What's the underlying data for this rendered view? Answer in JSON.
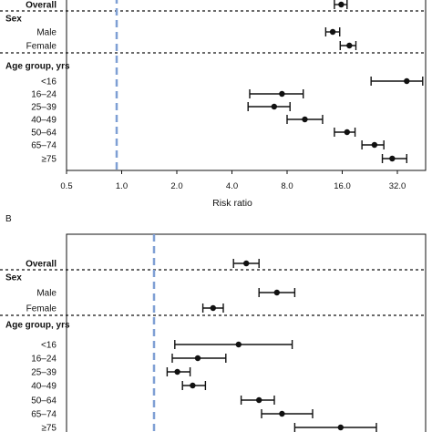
{
  "chart_data": [
    {
      "type": "forest",
      "panel_label": "",
      "xlabel": "Risk ratio",
      "x_scale": "log2",
      "xlim": [
        0.5,
        50
      ],
      "x_ticks": [
        0.5,
        1.0,
        2.0,
        4.0,
        8.0,
        16.0,
        32.0
      ],
      "x_tick_labels": [
        "0.5",
        "1.0",
        "2.0",
        "4.0",
        "8.0",
        "16.0",
        "32.0"
      ],
      "reference_line": 1.0,
      "rows": [
        {
          "label": "Overall",
          "group_header": false,
          "estimate": 15.8,
          "lower": 14.5,
          "upper": 17.0
        },
        {
          "label": "Sex",
          "group_header": true
        },
        {
          "label": "Male",
          "estimate": 14.2,
          "lower": 13.0,
          "upper": 15.5
        },
        {
          "label": "Female",
          "estimate": 17.5,
          "lower": 15.6,
          "upper": 19.0
        },
        {
          "label": "Age group, yrs",
          "group_header": true
        },
        {
          "label": "<16",
          "estimate": 36.0,
          "lower": 23.0,
          "upper": 44.0
        },
        {
          "label": "16–24",
          "estimate": 7.5,
          "lower": 5.0,
          "upper": 9.8
        },
        {
          "label": "25–39",
          "estimate": 6.8,
          "lower": 4.9,
          "upper": 8.3
        },
        {
          "label": "40–49",
          "estimate": 10.0,
          "lower": 8.0,
          "upper": 12.5
        },
        {
          "label": "50–64",
          "estimate": 17.0,
          "lower": 14.5,
          "upper": 18.8
        },
        {
          "label": "65–74",
          "estimate": 24.0,
          "lower": 20.5,
          "upper": 27.0
        },
        {
          "label": "≥75",
          "estimate": 30.0,
          "lower": 26.5,
          "upper": 36.0
        }
      ],
      "separators_after": [
        "Overall",
        "Female"
      ]
    },
    {
      "type": "forest",
      "panel_label": "B",
      "xlabel": "",
      "x_scale": "linear",
      "reference_line_style": "dashed",
      "rows": [
        {
          "label": "Overall",
          "group_header": false,
          "estimate": 0.59,
          "lower": 0.54,
          "upper": 0.64
        },
        {
          "label": "Sex",
          "group_header": true
        },
        {
          "label": "Male",
          "estimate": 0.71,
          "lower": 0.64,
          "upper": 0.78
        },
        {
          "label": "Female",
          "estimate": 0.46,
          "lower": 0.42,
          "upper": 0.5
        },
        {
          "label": "Age group, yrs",
          "group_header": true
        },
        {
          "label": "<16",
          "estimate": 0.56,
          "lower": 0.31,
          "upper": 0.77
        },
        {
          "label": "16–24",
          "estimate": 0.4,
          "lower": 0.3,
          "upper": 0.51
        },
        {
          "label": "25–39",
          "estimate": 0.32,
          "lower": 0.28,
          "upper": 0.37
        },
        {
          "label": "40–49",
          "estimate": 0.38,
          "lower": 0.34,
          "upper": 0.43
        },
        {
          "label": "50–64",
          "estimate": 0.64,
          "lower": 0.57,
          "upper": 0.7
        },
        {
          "label": "65–74",
          "estimate": 0.73,
          "lower": 0.65,
          "upper": 0.85
        },
        {
          "label": "≥75",
          "estimate": 0.96,
          "lower": 0.78,
          "upper": 1.1
        }
      ],
      "separators_after": [
        "Overall",
        "Female"
      ]
    }
  ],
  "colors": {
    "reference_line": "#7f9fd4",
    "marker": "#111111",
    "axis": "#111111"
  }
}
